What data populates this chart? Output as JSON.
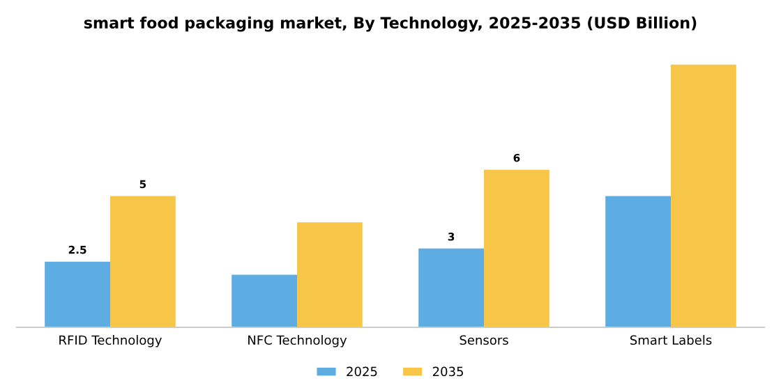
{
  "chart_data": {
    "type": "bar",
    "title": "smart food packaging market, By Technology, 2025-2035 (USD Billion)",
    "categories": [
      "RFID Technology",
      "NFC Technology",
      "Sensors",
      "Smart Labels"
    ],
    "series": [
      {
        "name": "2025",
        "color": "#5dade2",
        "values": [
          2.5,
          2.0,
          3,
          5.0
        ],
        "value_labels": [
          "2.5",
          null,
          "3",
          null
        ]
      },
      {
        "name": "2035",
        "color": "#f7c548",
        "values": [
          5,
          4.0,
          6,
          10.0
        ],
        "value_labels": [
          "5",
          null,
          "6",
          null
        ]
      }
    ],
    "legend": "bottom",
    "grid": false
  }
}
